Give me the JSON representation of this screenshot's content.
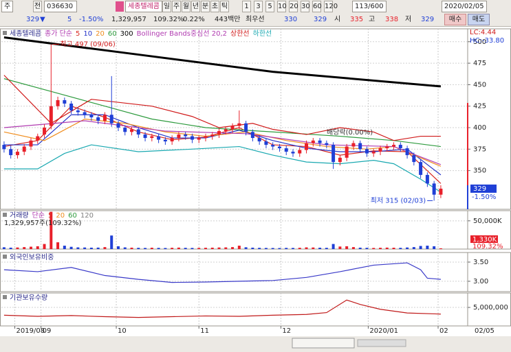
{
  "toolbar": {
    "market": "주",
    "all": "전",
    "code": "036630",
    "name": "세종텔레콤",
    "periods": [
      "일",
      "주",
      "월",
      "년",
      "분",
      "초",
      "틱"
    ],
    "intervals": [
      "1",
      "3",
      "5",
      "10",
      "20",
      "30",
      "60",
      "120"
    ],
    "count": "113/600",
    "date": "2020/02/05"
  },
  "quote": {
    "price": "329",
    "arrow": "▼",
    "change": "5",
    "change_rate": "-1.50%",
    "volume": "1,329,957",
    "volume_rate": "109.32%",
    "turnover": "0.22%",
    "amount": "443백만",
    "best": "최우선",
    "ask": "330",
    "bid": "329",
    "open_label": "시",
    "open": "335",
    "high_label": "고",
    "high": "338",
    "low_label": "저",
    "low": "329",
    "buy": "매수",
    "sell": "매도"
  },
  "chart_data": [
    {
      "type": "candlestick",
      "title": "세종텔레콤",
      "legend_title": "종가 단순",
      "x": [
        0,
        1,
        2,
        3,
        4,
        5,
        6,
        7,
        8,
        9,
        10,
        11,
        12,
        13,
        14,
        15,
        16,
        17,
        18,
        19,
        20,
        21,
        22,
        23,
        24,
        25,
        26,
        27,
        28,
        29,
        30,
        31,
        32,
        33,
        34,
        35,
        36,
        37,
        38,
        39,
        40,
        41,
        42,
        43,
        44,
        45,
        46,
        47,
        48,
        49,
        50,
        51,
        52,
        53,
        54,
        55,
        56,
        57,
        58,
        59,
        60,
        61,
        62,
        63,
        64,
        65
      ],
      "open": [
        380,
        375,
        368,
        372,
        378,
        385,
        392,
        402,
        425,
        432,
        428,
        420,
        418,
        415,
        412,
        408,
        415,
        405,
        400,
        395,
        398,
        392,
        388,
        390,
        386,
        384,
        388,
        392,
        390,
        386,
        388,
        390,
        392,
        396,
        398,
        402,
        405,
        395,
        388,
        384,
        380,
        378,
        376,
        372,
        370,
        374,
        382,
        385,
        382,
        380,
        360,
        365,
        378,
        382,
        375,
        370,
        372,
        376,
        378,
        380,
        376,
        368,
        360,
        345,
        335,
        322
      ],
      "high": [
        384,
        379,
        375,
        381,
        388,
        393,
        404,
        497,
        436,
        435,
        431,
        423,
        421,
        418,
        415,
        418,
        460,
        408,
        403,
        401,
        401,
        395,
        393,
        393,
        389,
        391,
        395,
        395,
        393,
        391,
        393,
        395,
        399,
        401,
        405,
        420,
        408,
        398,
        391,
        387,
        383,
        381,
        379,
        375,
        377,
        385,
        388,
        388,
        385,
        383,
        368,
        381,
        385,
        385,
        378,
        375,
        379,
        381,
        383,
        383,
        379,
        371,
        363,
        348,
        338,
        333
      ],
      "low": [
        371,
        364,
        364,
        368,
        374,
        381,
        388,
        398,
        421,
        424,
        416,
        414,
        411,
        408,
        404,
        404,
        401,
        396,
        391,
        391,
        388,
        384,
        384,
        382,
        380,
        380,
        384,
        386,
        382,
        382,
        384,
        386,
        388,
        392,
        394,
        398,
        391,
        384,
        380,
        376,
        374,
        372,
        368,
        366,
        366,
        370,
        378,
        378,
        376,
        352,
        356,
        361,
        374,
        371,
        366,
        366,
        368,
        372,
        374,
        372,
        364,
        356,
        341,
        331,
        315,
        318
      ],
      "close": [
        375,
        368,
        372,
        378,
        385,
        390,
        400,
        425,
        432,
        428,
        420,
        418,
        415,
        412,
        408,
        415,
        405,
        400,
        395,
        398,
        392,
        388,
        390,
        386,
        384,
        388,
        392,
        390,
        386,
        388,
        390,
        392,
        396,
        398,
        402,
        405,
        395,
        388,
        384,
        380,
        378,
        376,
        372,
        370,
        374,
        382,
        385,
        382,
        380,
        360,
        365,
        378,
        382,
        375,
        370,
        372,
        376,
        378,
        380,
        376,
        368,
        360,
        345,
        335,
        322,
        329
      ],
      "up_color": "#e8202a",
      "down_color": "#1f3fd6",
      "series": [
        {
          "name": "5",
          "color": "#d8261e",
          "x": [
            0,
            5,
            10,
            15,
            20,
            25,
            30,
            35,
            40,
            45,
            50,
            55,
            60,
            65
          ],
          "values": [
            378,
            385,
            425,
            412,
            395,
            386,
            389,
            400,
            380,
            378,
            368,
            373,
            372,
            335
          ]
        },
        {
          "name": "10",
          "color": "#2030c8",
          "x": [
            0,
            5,
            10,
            15,
            20,
            25,
            30,
            35,
            40,
            45,
            50,
            55,
            60,
            65
          ],
          "values": [
            380,
            380,
            415,
            415,
            400,
            388,
            388,
            397,
            385,
            376,
            372,
            372,
            375,
            345
          ]
        },
        {
          "name": "20",
          "color": "#f08c1c",
          "x": [
            0,
            6,
            12,
            18,
            24,
            30,
            36,
            42,
            48,
            54,
            58,
            65
          ],
          "values": [
            395,
            385,
            410,
            405,
            395,
            390,
            395,
            385,
            378,
            375,
            378,
            355
          ]
        },
        {
          "name": "60",
          "color": "#2c9a3c",
          "x": [
            0,
            8,
            15,
            22,
            30,
            40,
            50,
            58,
            65
          ],
          "values": [
            457,
            440,
            425,
            410,
            400,
            395,
            390,
            385,
            378
          ]
        },
        {
          "name": "300",
          "color": "#000000",
          "x": [
            0,
            20,
            40,
            65
          ],
          "values": [
            505,
            485,
            465,
            448
          ]
        },
        {
          "name": "Bollinger Bands중심선 20,2",
          "color": "#b03ab0",
          "x": [
            0,
            12,
            24,
            36,
            48,
            58,
            65
          ],
          "values": [
            400,
            408,
            396,
            393,
            380,
            378,
            357
          ]
        },
        {
          "name": "상한선",
          "color": "#d01818",
          "x": [
            0,
            7,
            13,
            22,
            28,
            32,
            37,
            40,
            45,
            50,
            55,
            58,
            62,
            65
          ],
          "values": [
            461,
            405,
            433,
            425,
            413,
            400,
            405,
            398,
            392,
            400,
            395,
            385,
            390,
            390
          ]
        },
        {
          "name": "하한선",
          "color": "#18a8b0",
          "x": [
            0,
            5,
            9,
            13,
            20,
            28,
            35,
            40,
            45,
            50,
            55,
            58,
            62,
            65
          ],
          "values": [
            352,
            352,
            370,
            380,
            372,
            375,
            378,
            368,
            360,
            358,
            362,
            358,
            340,
            325
          ]
        }
      ],
      "ylim": [
        305,
        515
      ],
      "yticks": [
        500,
        475,
        450,
        425,
        400,
        375,
        350
      ],
      "high_note": "최고 497 (09/06)",
      "low_note": "최저 315 (02/03)",
      "event_note": "배당락(0.00%)",
      "scale_notes": [
        "LC:4.44",
        "HC:-33.80"
      ]
    },
    {
      "type": "bar",
      "title": "거래량",
      "legend_title": "단순",
      "legend": [
        {
          "name": "5",
          "color": "#d8261e"
        },
        {
          "name": "20",
          "color": "#f08c1c"
        },
        {
          "name": "60",
          "color": "#2c9a3c"
        },
        {
          "name": "120",
          "color": "#808080"
        }
      ],
      "subtitle": "1,329,957주(109.32%)",
      "values": [
        3200,
        2500,
        2800,
        3500,
        4200,
        5000,
        9000,
        66000,
        12000,
        6000,
        4000,
        3000,
        2800,
        2500,
        2600,
        3500,
        24000,
        5000,
        3000,
        2500,
        2200,
        2000,
        2400,
        2100,
        1900,
        2300,
        2600,
        2200,
        2000,
        2100,
        2300,
        2500,
        2800,
        3000,
        3500,
        6000,
        3200,
        2500,
        2200,
        2000,
        1900,
        1800,
        2100,
        2000,
        2300,
        3000,
        2800,
        2400,
        2200,
        9000,
        4500,
        5000,
        3500,
        2500,
        2200,
        2000,
        2300,
        2600,
        2400,
        2200,
        2800,
        3500,
        5500,
        6000,
        5000,
        1330
      ],
      "last_label": "1,330K",
      "last_rate": "109.32%",
      "ylim": [
        0,
        68000
      ],
      "yticks": [
        {
          "value": 50000,
          "label": "50,000K"
        }
      ]
    },
    {
      "type": "line",
      "title": "외국인보유비중",
      "series": [
        {
          "color": "#3838c8",
          "x": [
            0,
            5,
            10,
            15,
            20,
            25,
            30,
            35,
            40,
            45,
            50,
            55,
            60,
            62,
            63,
            65
          ],
          "values": [
            3.3,
            3.25,
            3.36,
            3.15,
            3.05,
            2.97,
            2.98,
            3.0,
            3.02,
            3.1,
            3.25,
            3.42,
            3.48,
            3.3,
            3.08,
            3.05
          ]
        }
      ],
      "ylim": [
        2.73,
        3.75
      ],
      "yticks": [
        {
          "value": 3.5,
          "label": "3.50"
        },
        {
          "value": 3,
          "label": "3.00"
        }
      ]
    },
    {
      "type": "line",
      "title": "기관보유수량",
      "series": [
        {
          "color": "#c01818",
          "x": [
            0,
            5,
            10,
            15,
            20,
            25,
            30,
            35,
            40,
            45,
            48,
            51,
            53,
            56,
            60,
            65
          ],
          "values": [
            2900000,
            2600000,
            2800000,
            2500000,
            2300000,
            2500000,
            2700000,
            2600000,
            2900000,
            3100000,
            3600000,
            7000000,
            5800000,
            4500000,
            3500000,
            3200000
          ]
        }
      ],
      "ylim": [
        0,
        8900000
      ],
      "yticks": [
        {
          "value": 5000000,
          "label": "5,000,000"
        }
      ],
      "xlim": [
        -0.4,
        69
      ],
      "xticks": [
        {
          "value": 1.6,
          "label": "2019/08"
        },
        {
          "value": 5.5,
          "label": "09"
        },
        {
          "value": 16.7,
          "label": "10"
        },
        {
          "value": 29,
          "label": "11"
        },
        {
          "value": 41.2,
          "label": "12"
        },
        {
          "value": 54.2,
          "label": "2020/01"
        },
        {
          "value": 64.6,
          "label": "02"
        }
      ],
      "end_label": "02/05"
    }
  ]
}
